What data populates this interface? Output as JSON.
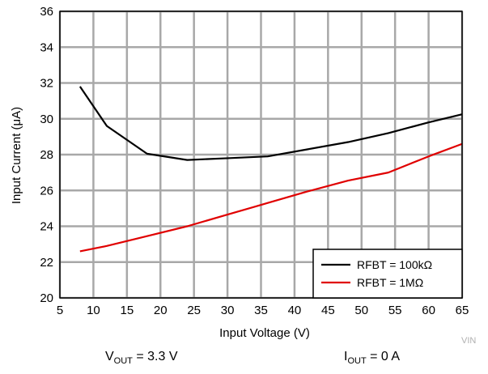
{
  "chart_data": {
    "type": "line",
    "title": "",
    "xlabel": "Input Voltage (V)",
    "ylabel": "Input Current (μA)",
    "xlim": [
      5,
      65
    ],
    "ylim": [
      20,
      36
    ],
    "x_ticks": [
      5,
      10,
      15,
      20,
      25,
      30,
      35,
      40,
      45,
      50,
      55,
      60,
      65
    ],
    "y_ticks": [
      20,
      22,
      24,
      26,
      28,
      30,
      32,
      34,
      36
    ],
    "grid": true,
    "legend_position": "bottom-right",
    "series": [
      {
        "name": "RFBT = 100kΩ",
        "color": "#000000",
        "x": [
          8,
          12,
          18,
          24,
          30,
          36,
          42,
          48,
          54,
          60,
          65
        ],
        "y": [
          31.8,
          29.6,
          28.05,
          27.7,
          27.8,
          27.9,
          28.3,
          28.7,
          29.2,
          29.8,
          30.25
        ]
      },
      {
        "name": "RFBT = 1MΩ",
        "color": "#e00000",
        "x": [
          8,
          12,
          18,
          24,
          30,
          36,
          42,
          48,
          54,
          60,
          65
        ],
        "y": [
          22.6,
          22.9,
          23.45,
          24.0,
          24.65,
          25.3,
          25.95,
          26.55,
          27.0,
          27.9,
          28.6
        ]
      }
    ]
  },
  "annotations": {
    "watermark": "VIN_",
    "vout_label": "V",
    "vout_sub": "OUT",
    "vout_value": " = 3.3 V",
    "iout_label": "I",
    "iout_sub": "OUT",
    "iout_value": " = 0 A"
  }
}
